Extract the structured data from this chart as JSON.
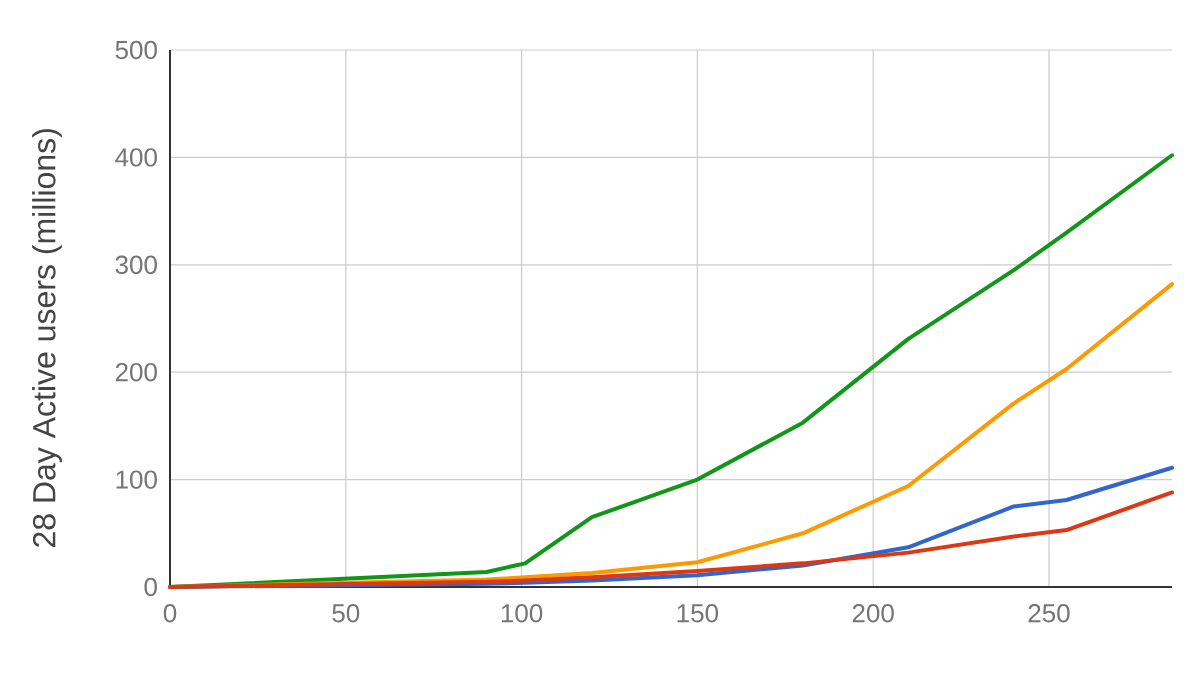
{
  "chart_data": {
    "type": "line",
    "ylabel": "28 Day Active users (millions)",
    "x": [
      0,
      90,
      101,
      120,
      150,
      180,
      210,
      240,
      255,
      285
    ],
    "series": [
      {
        "color": "#109618",
        "values": [
          0,
          14,
          22,
          65,
          100,
          153,
          231,
          295,
          330,
          402
        ]
      },
      {
        "color": "#ff9900",
        "values": [
          0,
          7,
          9,
          13,
          23,
          50,
          94,
          171,
          203,
          282
        ]
      },
      {
        "color": "#3366cc",
        "values": [
          0,
          3,
          4,
          6,
          11,
          20,
          37,
          75,
          81,
          111
        ]
      },
      {
        "color": "#dc3912",
        "values": [
          0,
          5,
          6,
          9,
          15,
          22,
          32,
          47,
          53,
          88
        ]
      }
    ],
    "xlim": [
      0,
      285
    ],
    "ylim": [
      0,
      500
    ],
    "xticks": [
      0,
      50,
      100,
      150,
      200,
      250
    ],
    "yticks": [
      0,
      100,
      200,
      300,
      400,
      500
    ],
    "grid": true,
    "line_style": "solid"
  }
}
